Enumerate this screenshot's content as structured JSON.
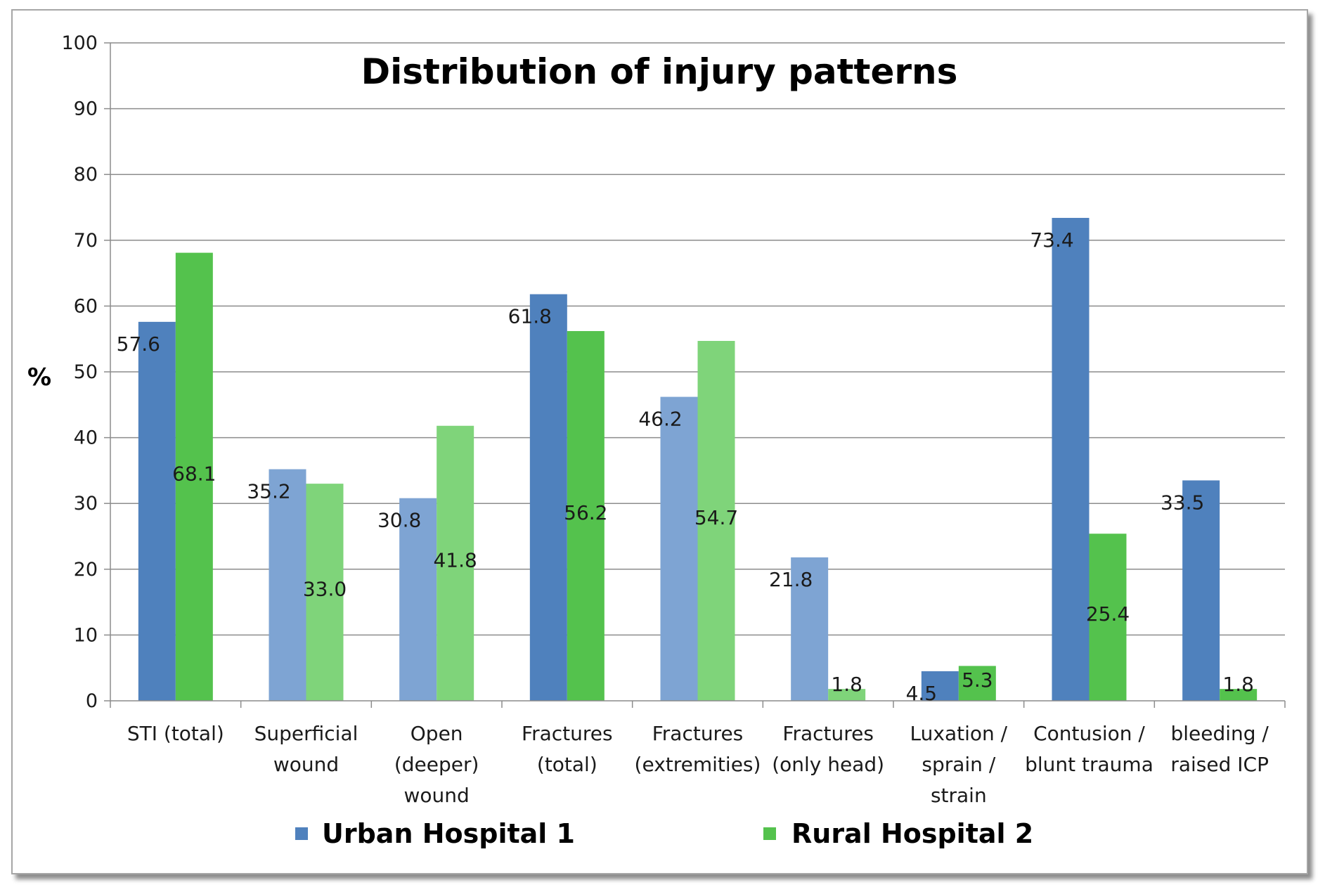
{
  "chart_data": {
    "type": "bar",
    "title": "Distribution of injury patterns",
    "xlabel": "",
    "ylabel": "%",
    "ylim": [
      0,
      100
    ],
    "yticks": [
      0,
      10,
      20,
      30,
      40,
      50,
      60,
      70,
      80,
      90,
      100
    ],
    "grid": true,
    "legend_position": "bottom",
    "categories": [
      [
        "STI (total)"
      ],
      [
        "Superficial",
        "wound"
      ],
      [
        "Open",
        "(deeper)",
        "wound"
      ],
      [
        "Fractures",
        "(total)"
      ],
      [
        "Fractures",
        "(extremities)"
      ],
      [
        "Fractures",
        "(only head)"
      ],
      [
        "Luxation /",
        "sprain /",
        "strain"
      ],
      [
        "Contusion /",
        "blunt trauma"
      ],
      [
        "bleeding /",
        "raised ICP"
      ]
    ],
    "emphasis": [
      true,
      false,
      false,
      true,
      false,
      false,
      true,
      true,
      true
    ],
    "series": [
      {
        "name": "Urban Hospital 1",
        "color": "#4f81bd",
        "color_light": "#7ea4d3",
        "values": [
          57.6,
          35.2,
          30.8,
          61.8,
          46.2,
          21.8,
          4.5,
          73.4,
          33.5
        ],
        "labels": [
          "57.6",
          "35.2",
          "30.8",
          "61.8",
          "46.2",
          "21.8",
          "4.5",
          "73.4",
          "33.5"
        ]
      },
      {
        "name": "Rural Hospital 2",
        "color": "#54c24d",
        "color_light": "#7fd47a",
        "values": [
          68.1,
          33.0,
          41.8,
          56.2,
          54.7,
          1.8,
          5.3,
          25.4,
          1.8
        ],
        "labels": [
          "68.1",
          "33.0",
          "41.8",
          "56.2",
          "54.7",
          "1.8",
          "5.3",
          "25.4",
          "1.8"
        ]
      }
    ]
  }
}
